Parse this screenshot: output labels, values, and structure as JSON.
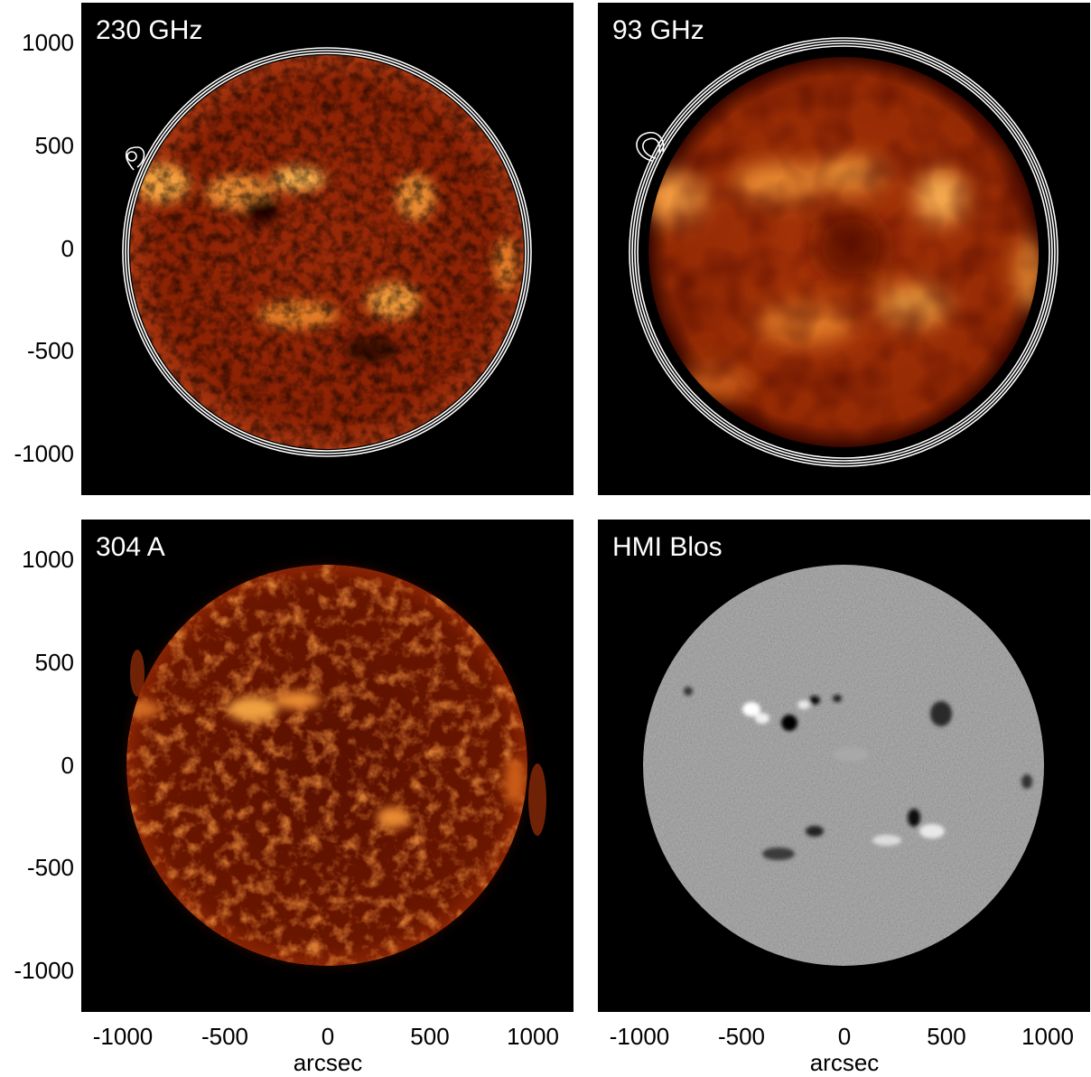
{
  "panels": [
    {
      "label": "230 GHz",
      "style": "alma-fine",
      "contours": true
    },
    {
      "label": "93 GHz",
      "style": "alma-smooth",
      "contours": true
    },
    {
      "label": "304 A",
      "style": "euv",
      "contours": false
    },
    {
      "label": "HMI Blos",
      "style": "magnetogram",
      "contours": false
    }
  ],
  "axes": {
    "y_ticks": [
      "1000",
      "500",
      "0",
      "-500",
      "-1000"
    ],
    "x_ticks": [
      "-1000",
      "-500",
      "0",
      "500",
      "1000"
    ],
    "x_title": "arcsec",
    "range_arcsec": [
      -1200,
      1200
    ],
    "solar_radius_arcsec": 970
  },
  "colors": {
    "background": "#000000",
    "label_text": "#ffffff",
    "contour": "#ffffff",
    "magnetogram_gray": "#8a8a8a"
  }
}
